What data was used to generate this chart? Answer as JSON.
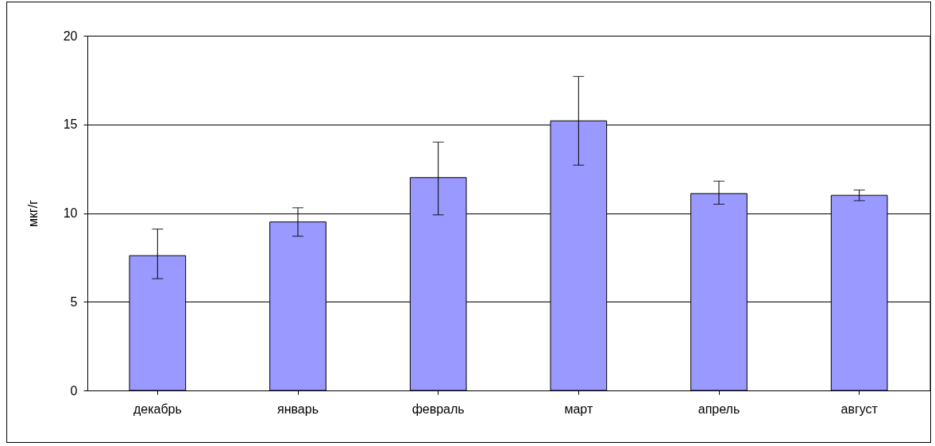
{
  "chart_data": {
    "type": "bar",
    "ylabel": "мкг/г",
    "categories": [
      "декабрь",
      "январь",
      "февраль",
      "март",
      "апрель",
      "август"
    ],
    "values": [
      7.6,
      9.5,
      12.0,
      15.2,
      11.1,
      11.0
    ],
    "errors": [
      [
        6.3,
        9.1
      ],
      [
        8.7,
        10.3
      ],
      [
        9.9,
        14.0
      ],
      [
        12.7,
        17.7
      ],
      [
        10.5,
        11.8
      ],
      [
        10.7,
        11.3
      ]
    ],
    "color": "#9999ff",
    "ylim": [
      0,
      20
    ],
    "yticks": [
      0,
      5,
      10,
      15,
      20
    ],
    "grid": "y"
  }
}
